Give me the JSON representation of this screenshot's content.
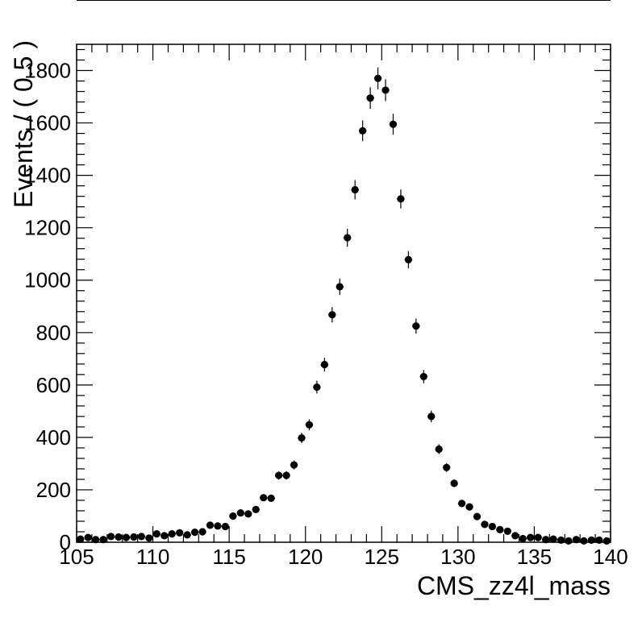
{
  "chart_data": {
    "type": "scatter",
    "xlabel": "CMS_zz4l_mass",
    "ylabel": "Events / ( 0.5 )",
    "xlim": [
      105,
      140
    ],
    "ylim": [
      0,
      1900
    ],
    "xticks": [
      105,
      110,
      115,
      120,
      125,
      130,
      135,
      140
    ],
    "yticks": [
      0,
      200,
      400,
      600,
      800,
      1000,
      1200,
      1400,
      1600,
      1800
    ],
    "grid": false,
    "legend": "none",
    "bin_width": 0.5,
    "series": [
      {
        "marker_color": "#000000",
        "x": [
          105.25,
          105.75,
          106.25,
          106.75,
          107.25,
          107.75,
          108.25,
          108.75,
          109.25,
          109.75,
          110.25,
          110.75,
          111.25,
          111.75,
          112.25,
          112.75,
          113.25,
          113.75,
          114.25,
          114.75,
          115.25,
          115.75,
          116.25,
          116.75,
          117.25,
          117.75,
          118.25,
          118.75,
          119.25,
          119.75,
          120.25,
          120.75,
          121.25,
          121.75,
          122.25,
          122.75,
          123.25,
          123.75,
          124.25,
          124.75,
          125.25,
          125.75,
          126.25,
          126.75,
          127.25,
          127.75,
          128.25,
          128.75,
          129.25,
          129.75,
          130.25,
          130.75,
          131.25,
          131.75,
          132.25,
          132.75,
          133.25,
          133.75,
          134.25,
          134.75,
          135.25,
          135.75,
          136.25,
          136.75,
          137.25,
          137.75,
          138.25,
          138.75,
          139.25,
          139.75
        ],
        "y": [
          12,
          18,
          10,
          10,
          22,
          20,
          18,
          20,
          22,
          16,
          32,
          25,
          32,
          36,
          28,
          38,
          40,
          65,
          62,
          60,
          100,
          112,
          108,
          125,
          170,
          168,
          255,
          255,
          295,
          398,
          448,
          592,
          678,
          868,
          975,
          1162,
          1345,
          1570,
          1695,
          1770,
          1725,
          1595,
          1310,
          1078,
          825,
          632,
          480,
          355,
          285,
          225,
          148,
          135,
          98,
          68,
          60,
          48,
          42,
          25,
          14,
          18,
          18,
          10,
          12,
          8,
          5,
          10,
          5,
          8,
          8,
          5
        ]
      }
    ]
  }
}
